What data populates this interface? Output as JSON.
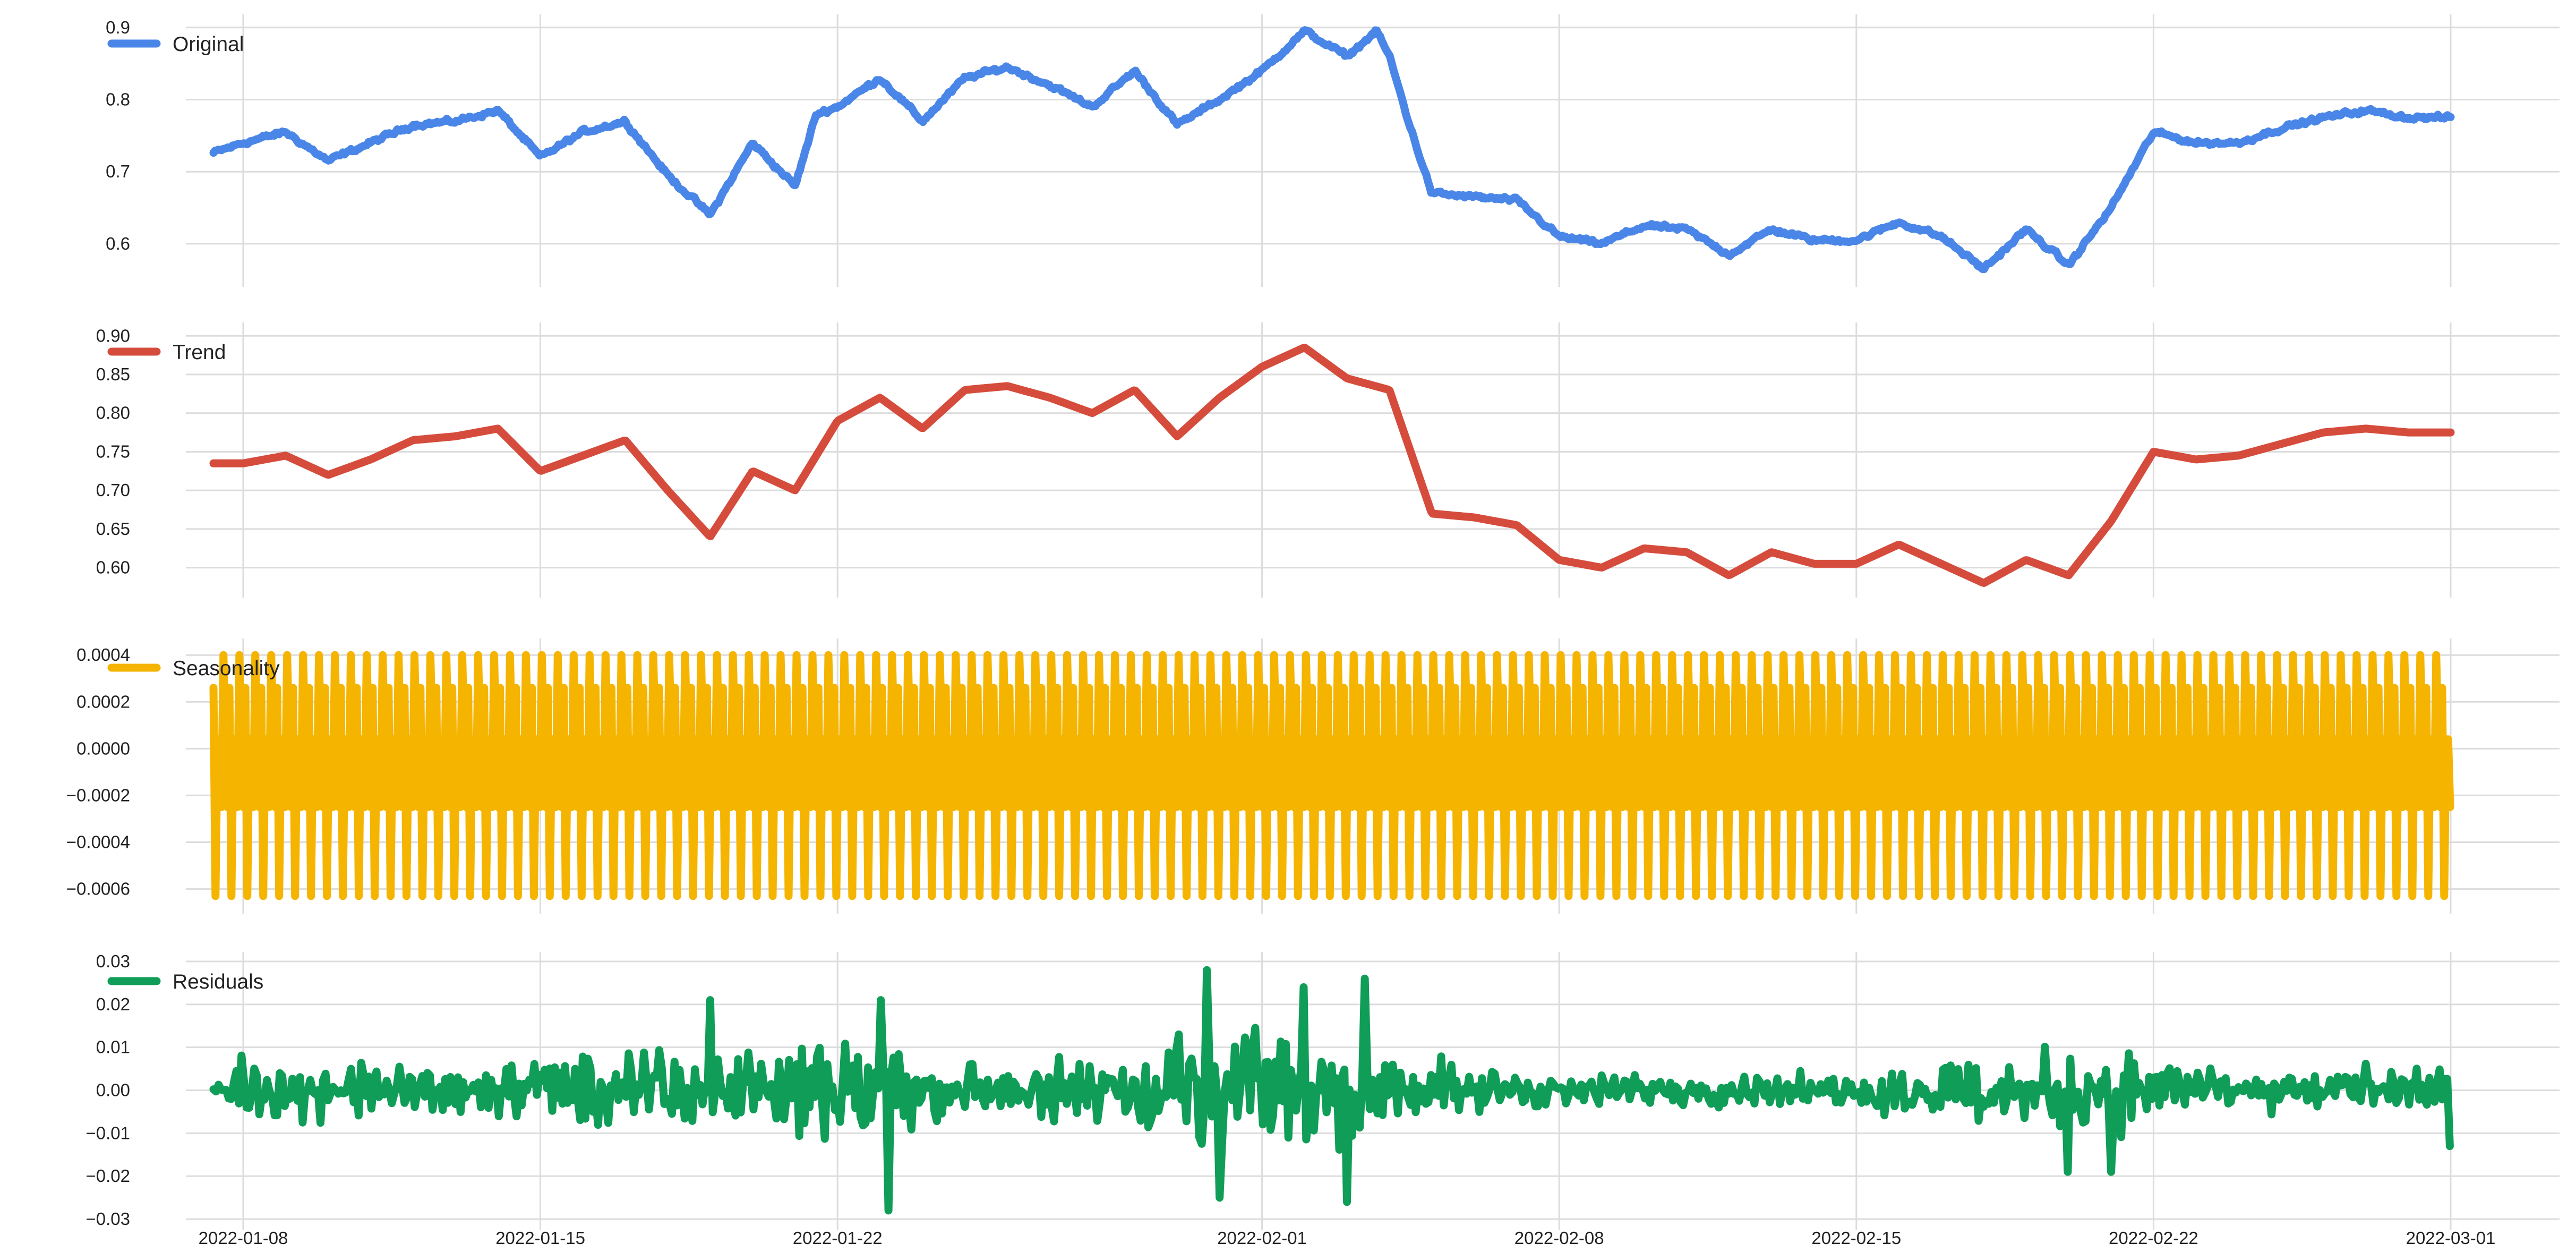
{
  "chart_data": [
    {
      "type": "line",
      "series": [
        {
          "name": "Original",
          "color": "#4a86e8",
          "key": "original"
        }
      ],
      "yticks": [
        0.6,
        0.7,
        0.8,
        0.9
      ],
      "ytick_labels": [
        "0.6",
        "0.7",
        "0.8",
        "0.9"
      ],
      "ylim": [
        0.555,
        0.905
      ],
      "x_range": [
        "2022-01-07",
        "2022-03-01"
      ],
      "anchors": [
        [
          "2022-01-07",
          0.72
        ],
        [
          "2022-01-08",
          0.74
        ],
        [
          "2022-01-09",
          0.755
        ],
        [
          "2022-01-10",
          0.715
        ],
        [
          "2022-01-11",
          0.74
        ],
        [
          "2022-01-12",
          0.765
        ],
        [
          "2022-01-13",
          0.77
        ],
        [
          "2022-01-14",
          0.785
        ],
        [
          "2022-01-15",
          0.72
        ],
        [
          "2022-01-16",
          0.755
        ],
        [
          "2022-01-17",
          0.77
        ],
        [
          "2022-01-18",
          0.695
        ],
        [
          "2022-01-19",
          0.64
        ],
        [
          "2022-01-20",
          0.74
        ],
        [
          "2022-01-21",
          0.68
        ],
        [
          "2022-01-21.5",
          0.78
        ],
        [
          "2022-01-22",
          0.79
        ],
        [
          "2022-01-23",
          0.83
        ],
        [
          "2022-01-24",
          0.77
        ],
        [
          "2022-01-25",
          0.83
        ],
        [
          "2022-01-26",
          0.845
        ],
        [
          "2022-01-27",
          0.82
        ],
        [
          "2022-01-28",
          0.79
        ],
        [
          "2022-01-29",
          0.84
        ],
        [
          "2022-01-30",
          0.765
        ],
        [
          "2022-01-31",
          0.8
        ],
        [
          "2022-02-01",
          0.84
        ],
        [
          "2022-02-02",
          0.895
        ],
        [
          "2022-02-03",
          0.86
        ],
        [
          "2022-02-03.7",
          0.895
        ],
        [
          "2022-02-04",
          0.86
        ],
        [
          "2022-02-04.5",
          0.76
        ],
        [
          "2022-02-05",
          0.67
        ],
        [
          "2022-02-06",
          0.665
        ],
        [
          "2022-02-07",
          0.66
        ],
        [
          "2022-02-08",
          0.61
        ],
        [
          "2022-02-09",
          0.6
        ],
        [
          "2022-02-10",
          0.625
        ],
        [
          "2022-02-11",
          0.62
        ],
        [
          "2022-02-12",
          0.585
        ],
        [
          "2022-02-13",
          0.62
        ],
        [
          "2022-02-14",
          0.605
        ],
        [
          "2022-02-15",
          0.605
        ],
        [
          "2022-02-16",
          0.63
        ],
        [
          "2022-02-17",
          0.61
        ],
        [
          "2022-02-18",
          0.565
        ],
        [
          "2022-02-19",
          0.62
        ],
        [
          "2022-02-20",
          0.57
        ],
        [
          "2022-02-21",
          0.65
        ],
        [
          "2022-02-22",
          0.755
        ],
        [
          "2022-02-23",
          0.74
        ],
        [
          "2022-02-24",
          0.74
        ],
        [
          "2022-02-25",
          0.76
        ],
        [
          "2022-02-26",
          0.775
        ],
        [
          "2022-02-27",
          0.785
        ],
        [
          "2022-02-28",
          0.775
        ],
        [
          "2022-03-01",
          0.775
        ]
      ]
    },
    {
      "type": "line",
      "series": [
        {
          "name": "Trend",
          "color": "#d64c3c",
          "key": "trend"
        }
      ],
      "yticks": [
        0.6,
        0.65,
        0.7,
        0.75,
        0.8,
        0.85,
        0.9
      ],
      "ytick_labels": [
        "0.60",
        "0.65",
        "0.70",
        "0.75",
        "0.80",
        "0.85",
        "0.90"
      ],
      "ylim": [
        0.575,
        0.905
      ],
      "x_range": [
        "2022-01-07",
        "2022-03-01"
      ],
      "anchors": [
        [
          "2022-01-07",
          0.735
        ],
        [
          "2022-01-08",
          0.735
        ],
        [
          "2022-01-09",
          0.745
        ],
        [
          "2022-01-10",
          0.72
        ],
        [
          "2022-01-11",
          0.74
        ],
        [
          "2022-01-12",
          0.765
        ],
        [
          "2022-01-13",
          0.77
        ],
        [
          "2022-01-14",
          0.78
        ],
        [
          "2022-01-15",
          0.725
        ],
        [
          "2022-01-16",
          0.745
        ],
        [
          "2022-01-17",
          0.765
        ],
        [
          "2022-01-18",
          0.7
        ],
        [
          "2022-01-19",
          0.64
        ],
        [
          "2022-01-20",
          0.725
        ],
        [
          "2022-01-21",
          0.7
        ],
        [
          "2022-01-22",
          0.79
        ],
        [
          "2022-01-23",
          0.82
        ],
        [
          "2022-01-24",
          0.78
        ],
        [
          "2022-01-25",
          0.83
        ],
        [
          "2022-01-26",
          0.835
        ],
        [
          "2022-01-27",
          0.82
        ],
        [
          "2022-01-28",
          0.8
        ],
        [
          "2022-01-29",
          0.83
        ],
        [
          "2022-01-30",
          0.77
        ],
        [
          "2022-01-31",
          0.82
        ],
        [
          "2022-02-01",
          0.86
        ],
        [
          "2022-02-02",
          0.885
        ],
        [
          "2022-02-03",
          0.845
        ],
        [
          "2022-02-04",
          0.83
        ],
        [
          "2022-02-05",
          0.67
        ],
        [
          "2022-02-06",
          0.665
        ],
        [
          "2022-02-07",
          0.655
        ],
        [
          "2022-02-08",
          0.61
        ],
        [
          "2022-02-09",
          0.6
        ],
        [
          "2022-02-10",
          0.625
        ],
        [
          "2022-02-11",
          0.62
        ],
        [
          "2022-02-12",
          0.59
        ],
        [
          "2022-02-13",
          0.62
        ],
        [
          "2022-02-14",
          0.605
        ],
        [
          "2022-02-15",
          0.605
        ],
        [
          "2022-02-16",
          0.63
        ],
        [
          "2022-02-17",
          0.605
        ],
        [
          "2022-02-18",
          0.58
        ],
        [
          "2022-02-19",
          0.61
        ],
        [
          "2022-02-20",
          0.59
        ],
        [
          "2022-02-21",
          0.66
        ],
        [
          "2022-02-22",
          0.75
        ],
        [
          "2022-02-23",
          0.74
        ],
        [
          "2022-02-24",
          0.745
        ],
        [
          "2022-02-25",
          0.76
        ],
        [
          "2022-02-26",
          0.775
        ],
        [
          "2022-02-27",
          0.78
        ],
        [
          "2022-02-28",
          0.775
        ],
        [
          "2022-03-01",
          0.775
        ]
      ]
    },
    {
      "type": "line",
      "series": [
        {
          "name": "Seasonality",
          "color": "#f4b400",
          "key": "seasonality"
        }
      ],
      "yticks": [
        -0.0006,
        -0.0004,
        -0.0002,
        0,
        0.0002,
        0.0004
      ],
      "ytick_labels": [
        "−0.0006",
        "−0.0004",
        "−0.0002",
        "0.0000",
        "0.0002",
        "0.0004"
      ],
      "ylim": [
        -0.00066,
        0.00043
      ],
      "x_range": [
        "2022-01-07",
        "2022-03-01"
      ],
      "period_days": 0.375,
      "pattern": [
        0.00026,
        -0.00063,
        4e-05,
        4e-05,
        -0.00025,
        0.0004,
        4e-05,
        -0.00025,
        0.00026
      ]
    },
    {
      "type": "line",
      "series": [
        {
          "name": "Residuals",
          "color": "#0f9d58",
          "key": "residuals"
        }
      ],
      "yticks": [
        -0.03,
        -0.02,
        -0.01,
        0,
        0.01,
        0.02,
        0.03
      ],
      "ytick_labels": [
        "−0.03",
        "−0.02",
        "−0.01",
        "0.00",
        "0.01",
        "0.02",
        "0.03"
      ],
      "ylim": [
        -0.03,
        0.03
      ],
      "x_range": [
        "2022-01-07",
        "2022-03-01"
      ],
      "amplitude_profile": [
        [
          "2022-01-07",
          0.009
        ],
        [
          "2022-01-14",
          0.009
        ],
        [
          "2022-01-16",
          0.014
        ],
        [
          "2022-01-20",
          0.012
        ],
        [
          "2022-01-22",
          0.018
        ],
        [
          "2022-01-25",
          0.008
        ],
        [
          "2022-01-30",
          0.016
        ],
        [
          "2022-02-02",
          0.022
        ],
        [
          "2022-02-05",
          0.01
        ],
        [
          "2022-02-08",
          0.005
        ],
        [
          "2022-02-15",
          0.005
        ],
        [
          "2022-02-17",
          0.012
        ],
        [
          "2022-02-21",
          0.014
        ],
        [
          "2022-02-24",
          0.006
        ],
        [
          "2022-03-01",
          0.008
        ]
      ],
      "spikes": [
        [
          "2022-01-19",
          0.021
        ],
        [
          "2022-01-23",
          0.021
        ],
        [
          "2022-01-23.2",
          -0.028
        ],
        [
          "2022-01-30.7",
          0.028
        ],
        [
          "2022-01-31",
          -0.025
        ],
        [
          "2022-02-02",
          0.024
        ],
        [
          "2022-02-03",
          -0.026
        ],
        [
          "2022-02-03.4",
          0.026
        ],
        [
          "2022-02-20",
          -0.019
        ],
        [
          "2022-02-21",
          -0.019
        ],
        [
          "2022-03-01",
          -0.013
        ]
      ]
    }
  ],
  "x_axis": {
    "ticks": [
      "2022-01-08",
      "2022-01-15",
      "2022-01-22",
      "2022-02-01",
      "2022-02-08",
      "2022-02-15",
      "2022-02-22",
      "2022-03-01"
    ],
    "tick_labels": [
      "2022-01-08",
      "2022-01-15",
      "2022-01-22",
      "2022-02-01",
      "2022-02-08",
      "2022-02-15",
      "2022-02-22",
      "2022-03-01"
    ]
  },
  "grid": true,
  "legend_placement": "top-left"
}
